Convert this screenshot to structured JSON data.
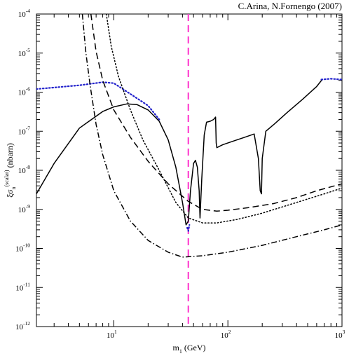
{
  "credit": "C.Arina, N.Fornengo (2007)",
  "chart_data": {
    "type": "line",
    "title": "",
    "xlabel": {
      "base": "m",
      "sub": "1",
      "rest": " (GeV)"
    },
    "ylabel": {
      "xi": "ξσ",
      "sub": "n",
      "sup": "(scalar)",
      "rest": " (nbarn)"
    },
    "x_scale": "log",
    "y_scale": "log",
    "xlim": [
      2.1,
      1000
    ],
    "ylim": [
      1e-12,
      0.0001
    ],
    "x_ticks": [
      {
        "value": 10,
        "base": "10",
        "exp": "1"
      },
      {
        "value": 100,
        "base": "10",
        "exp": "2"
      },
      {
        "value": 1000,
        "base": "10",
        "exp": "3"
      }
    ],
    "y_ticks": [
      {
        "value": 1e-12,
        "base": "10",
        "exp": "-12"
      },
      {
        "value": 1e-11,
        "base": "10",
        "exp": "-11"
      },
      {
        "value": 1e-10,
        "base": "10",
        "exp": "-10"
      },
      {
        "value": 1e-09,
        "base": "10",
        "exp": "-9"
      },
      {
        "value": 1e-08,
        "base": "10",
        "exp": "-8"
      },
      {
        "value": 1e-07,
        "base": "10",
        "exp": "-7"
      },
      {
        "value": 1e-06,
        "base": "10",
        "exp": "-6"
      },
      {
        "value": 1e-05,
        "base": "10",
        "exp": "-5"
      },
      {
        "value": 0.0001,
        "base": "10",
        "exp": "-4"
      }
    ],
    "grid": false,
    "legend": "none",
    "vline": {
      "x": 45,
      "color": "#ff33cc",
      "style": "dashed"
    },
    "series": [
      {
        "style": "solid",
        "color": "#000000",
        "points": [
          [
            2.1,
            2.5e-09
          ],
          [
            3,
            1.5e-08
          ],
          [
            5,
            1.2e-07
          ],
          [
            8,
            3.2e-07
          ],
          [
            10,
            4.2e-07
          ],
          [
            13,
            5e-07
          ],
          [
            16,
            4.8e-07
          ],
          [
            20,
            3.5e-07
          ],
          [
            25,
            1.8e-07
          ],
          [
            30,
            6e-08
          ],
          [
            35,
            1.2e-08
          ],
          [
            40,
            1.5e-09
          ],
          [
            43,
            4e-10
          ],
          [
            45,
            5e-10
          ],
          [
            47,
            3e-09
          ],
          [
            50,
            1.5e-08
          ],
          [
            52,
            1.8e-08
          ],
          [
            54,
            1.2e-08
          ],
          [
            56,
            3e-09
          ],
          [
            57,
            6e-10
          ],
          [
            59,
            6e-09
          ],
          [
            62,
            8e-08
          ],
          [
            65,
            1.7e-07
          ],
          [
            70,
            1.8e-07
          ],
          [
            75,
            2e-07
          ],
          [
            78,
            2.3e-07
          ],
          [
            79,
            5e-08
          ],
          [
            80,
            3.8e-08
          ],
          [
            90,
            4.5e-08
          ],
          [
            110,
            5.5e-08
          ],
          [
            140,
            7e-08
          ],
          [
            170,
            8.5e-08
          ],
          [
            185,
            2e-08
          ],
          [
            192,
            3e-09
          ],
          [
            197,
            2.5e-09
          ],
          [
            200,
            2e-08
          ],
          [
            215,
            1e-07
          ],
          [
            260,
            1.6e-07
          ],
          [
            330,
            3e-07
          ],
          [
            450,
            6.5e-07
          ],
          [
            600,
            1.4e-06
          ],
          [
            670,
            2.1e-06
          ]
        ]
      },
      {
        "style": "dotted",
        "color": "#2222cc",
        "points": [
          [
            2.1,
            1.2e-06
          ],
          [
            5,
            1.5e-06
          ],
          [
            8,
            1.8e-06
          ],
          [
            10,
            1.7e-06
          ],
          [
            14,
            9e-07
          ],
          [
            20,
            4.5e-07
          ],
          [
            25,
            2e-07
          ]
        ]
      },
      {
        "style": "dotted",
        "color": "#2222cc",
        "points": [
          [
            44,
            3.4e-10
          ],
          [
            45,
            2.8e-10
          ],
          [
            46,
            4e-10
          ]
        ]
      },
      {
        "style": "dotted",
        "color": "#2222cc",
        "points": [
          [
            660,
            2.1e-06
          ],
          [
            800,
            2.2e-06
          ],
          [
            1000,
            2.1e-06
          ]
        ]
      },
      {
        "style": "dashed",
        "color": "#000000",
        "points": [
          [
            6.3,
            0.0001
          ],
          [
            7,
            1.1e-05
          ],
          [
            8,
            2e-06
          ],
          [
            10,
            3.5e-07
          ],
          [
            14,
            7e-08
          ],
          [
            20,
            1.7e-08
          ],
          [
            30,
            4.5e-09
          ],
          [
            45,
            1.6e-09
          ],
          [
            60,
            1e-09
          ],
          [
            80,
            9e-10
          ],
          [
            100,
            9.5e-10
          ],
          [
            150,
            1.1e-09
          ],
          [
            250,
            1.4e-09
          ],
          [
            400,
            2e-09
          ],
          [
            600,
            3e-09
          ],
          [
            1000,
            4.5e-09
          ]
        ]
      },
      {
        "style": "dotted",
        "color": "#000000",
        "points": [
          [
            8.6,
            0.0001
          ],
          [
            9.5,
            1.5e-05
          ],
          [
            11,
            2.5e-06
          ],
          [
            14,
            3.5e-07
          ],
          [
            18,
            6e-08
          ],
          [
            25,
            1e-08
          ],
          [
            35,
            1.5e-09
          ],
          [
            45,
            6e-10
          ],
          [
            60,
            4.5e-10
          ],
          [
            80,
            4.5e-10
          ],
          [
            120,
            5.5e-10
          ],
          [
            200,
            8e-10
          ],
          [
            400,
            1.5e-09
          ],
          [
            700,
            2.5e-09
          ],
          [
            1000,
            3.5e-09
          ]
        ]
      },
      {
        "style": "dashdot",
        "color": "#000000",
        "points": [
          [
            5.3,
            0.0001
          ],
          [
            5.7,
            1e-05
          ],
          [
            6.2,
            1.5e-06
          ],
          [
            7,
            1.5e-07
          ],
          [
            8,
            2.5e-08
          ],
          [
            10,
            3e-09
          ],
          [
            14,
            5e-10
          ],
          [
            20,
            1.6e-10
          ],
          [
            30,
            8e-11
          ],
          [
            40,
            6e-11
          ],
          [
            60,
            6.5e-11
          ],
          [
            100,
            8e-11
          ],
          [
            200,
            1.2e-10
          ],
          [
            400,
            2e-10
          ],
          [
            700,
            3e-10
          ],
          [
            1000,
            4e-10
          ]
        ]
      }
    ]
  }
}
